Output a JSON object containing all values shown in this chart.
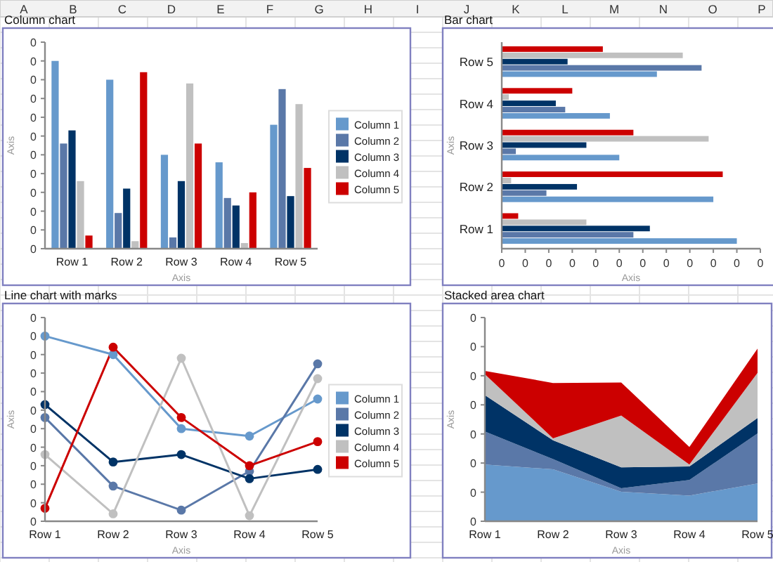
{
  "chart_data": [
    {
      "type": "other",
      "annotations": [
        "A",
        "B",
        "C",
        "D",
        "E",
        "F",
        "G",
        "H",
        "I",
        "J",
        "K",
        "L",
        "M",
        "N",
        "O",
        "P"
      ]
    },
    {
      "type": "bar",
      "title": "Column chart",
      "xlabel": "Axis",
      "ylabel": "Axis",
      "legend": "right",
      "categories": [
        "Row 1",
        "Row 2",
        "Row 3",
        "Row 4",
        "Row 5"
      ],
      "ylim": [
        0,
        0.44
      ],
      "yticks": [
        {
          "value": 0,
          "label": "0"
        },
        {
          "value": 0.04,
          "label": "0"
        },
        {
          "value": 0.08,
          "label": "0"
        },
        {
          "value": 0.12,
          "label": "0"
        },
        {
          "value": 0.16,
          "label": "0"
        },
        {
          "value": 0.2,
          "label": "0"
        },
        {
          "value": 0.24,
          "label": "0"
        },
        {
          "value": 0.28,
          "label": "0"
        },
        {
          "value": 0.32,
          "label": "0"
        },
        {
          "value": 0.36,
          "label": "0"
        },
        {
          "value": 0.4,
          "label": "0"
        },
        {
          "value": 0.44,
          "label": "0"
        }
      ],
      "series": [
        {
          "name": "Column 1",
          "color": "#6699cc",
          "values": [
            0.4,
            0.36,
            0.2,
            0.184,
            0.264
          ]
        },
        {
          "name": "Column 2",
          "color": "#5a78a8",
          "values": [
            0.224,
            0.076,
            0.024,
            0.108,
            0.34
          ]
        },
        {
          "name": "Column 3",
          "color": "#003366",
          "values": [
            0.252,
            0.128,
            0.144,
            0.092,
            0.112
          ]
        },
        {
          "name": "Column 4",
          "color": "#c0c0c0",
          "values": [
            0.144,
            0.016,
            0.352,
            0.012,
            0.308
          ]
        },
        {
          "name": "Column 5",
          "color": "#cc0000",
          "values": [
            0.028,
            0.376,
            0.224,
            0.12,
            0.172
          ]
        }
      ]
    },
    {
      "type": "bar",
      "orientation": "horizontal",
      "title": "Bar chart",
      "xlabel": "Axis",
      "ylabel": "Axis",
      "categories": [
        "Row 5",
        "Row 4",
        "Row 3",
        "Row 2",
        "Row 1"
      ],
      "xlim": [
        0,
        0.44
      ],
      "xticks": [
        {
          "value": 0,
          "label": "0"
        },
        {
          "value": 0.04,
          "label": "0"
        },
        {
          "value": 0.08,
          "label": "0"
        },
        {
          "value": 0.12,
          "label": "0"
        },
        {
          "value": 0.16,
          "label": "0"
        },
        {
          "value": 0.2,
          "label": "0"
        },
        {
          "value": 0.24,
          "label": "0"
        },
        {
          "value": 0.28,
          "label": "0"
        },
        {
          "value": 0.32,
          "label": "0"
        },
        {
          "value": 0.36,
          "label": "0"
        },
        {
          "value": 0.4,
          "label": "0"
        },
        {
          "value": 0.44,
          "label": "0"
        }
      ],
      "series": [
        {
          "color": "#6699cc",
          "values": [
            0.264,
            0.184,
            0.2,
            0.36,
            0.4
          ]
        },
        {
          "color": "#5a78a8",
          "values": [
            0.34,
            0.108,
            0.024,
            0.076,
            0.224
          ]
        },
        {
          "color": "#003366",
          "values": [
            0.112,
            0.092,
            0.144,
            0.128,
            0.252
          ]
        },
        {
          "color": "#c0c0c0",
          "values": [
            0.308,
            0.012,
            0.352,
            0.016,
            0.144
          ]
        },
        {
          "color": "#cc0000",
          "values": [
            0.172,
            0.12,
            0.224,
            0.376,
            0.028
          ]
        }
      ]
    },
    {
      "type": "line",
      "title": "Line chart with marks",
      "xlabel": "Axis",
      "ylabel": "Axis",
      "legend": "right",
      "marker": "circle",
      "categories": [
        "Row 1",
        "Row 2",
        "Row 3",
        "Row 4",
        "Row 5"
      ],
      "ylim": [
        0,
        0.44
      ],
      "yticks": [
        {
          "value": 0,
          "label": "0"
        },
        {
          "value": 0.04,
          "label": "0"
        },
        {
          "value": 0.08,
          "label": "0"
        },
        {
          "value": 0.12,
          "label": "0"
        },
        {
          "value": 0.16,
          "label": "0"
        },
        {
          "value": 0.2,
          "label": "0"
        },
        {
          "value": 0.24,
          "label": "0"
        },
        {
          "value": 0.28,
          "label": "0"
        },
        {
          "value": 0.32,
          "label": "0"
        },
        {
          "value": 0.36,
          "label": "0"
        },
        {
          "value": 0.4,
          "label": "0"
        },
        {
          "value": 0.44,
          "label": "0"
        }
      ],
      "series": [
        {
          "name": "Column 1",
          "color": "#6699cc",
          "values": [
            0.4,
            0.36,
            0.2,
            0.184,
            0.264
          ]
        },
        {
          "name": "Column 2",
          "color": "#5a78a8",
          "values": [
            0.224,
            0.076,
            0.024,
            0.108,
            0.34
          ]
        },
        {
          "name": "Column 3",
          "color": "#003366",
          "values": [
            0.252,
            0.128,
            0.144,
            0.092,
            0.112
          ]
        },
        {
          "name": "Column 4",
          "color": "#c0c0c0",
          "values": [
            0.144,
            0.016,
            0.352,
            0.012,
            0.308
          ]
        },
        {
          "name": "Column 5",
          "color": "#cc0000",
          "values": [
            0.028,
            0.376,
            0.224,
            0.12,
            0.172
          ]
        }
      ]
    },
    {
      "type": "area",
      "stacked": true,
      "title": "Stacked area chart",
      "xlabel": "Axis",
      "ylabel": "Axis",
      "categories": [
        "Row 1",
        "Row 2",
        "Row 3",
        "Row 4",
        "Row 5"
      ],
      "ylim": [
        0,
        0.42
      ],
      "yticks": [
        {
          "value": 0,
          "label": "0"
        },
        {
          "value": 0.06,
          "label": "0"
        },
        {
          "value": 0.12,
          "label": "0"
        },
        {
          "value": 0.18,
          "label": "0"
        },
        {
          "value": 0.24,
          "label": "0"
        },
        {
          "value": 0.3,
          "label": "0"
        },
        {
          "value": 0.36,
          "label": "0"
        },
        {
          "value": 0.42,
          "label": "0"
        }
      ],
      "series": [
        {
          "color": "#6699cc",
          "values": [
            0.117,
            0.107,
            0.061,
            0.053,
            0.078
          ]
        },
        {
          "color": "#5a78a8",
          "values": [
            0.068,
            0.021,
            0.007,
            0.032,
            0.103
          ]
        },
        {
          "color": "#003366",
          "values": [
            0.075,
            0.039,
            0.043,
            0.028,
            0.032
          ]
        },
        {
          "color": "#c0c0c0",
          "values": [
            0.043,
            0.004,
            0.107,
            0.004,
            0.093
          ]
        },
        {
          "color": "#cc0000",
          "values": [
            0.007,
            0.114,
            0.068,
            0.036,
            0.05
          ]
        }
      ]
    }
  ]
}
